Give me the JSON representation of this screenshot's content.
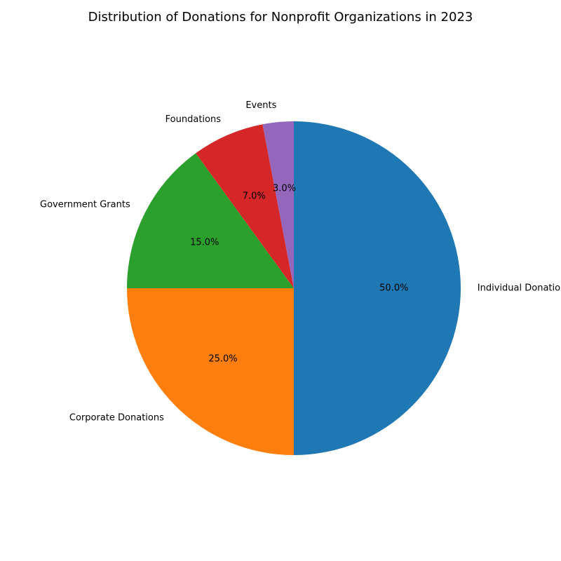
{
  "chart_data": {
    "type": "pie",
    "title": "Distribution of Donations for Nonprofit Organizations in 2023",
    "start_angle_deg": 90,
    "direction": "clockwise",
    "slices": [
      {
        "label": "Individual Donations",
        "value": 50.0,
        "pct_label": "50.0%",
        "color": "#1f77b4"
      },
      {
        "label": "Corporate Donations",
        "value": 25.0,
        "pct_label": "25.0%",
        "color": "#ff7f0e"
      },
      {
        "label": "Government Grants",
        "value": 15.0,
        "pct_label": "15.0%",
        "color": "#2ca02c"
      },
      {
        "label": "Foundations",
        "value": 7.0,
        "pct_label": "7.0%",
        "color": "#d62728"
      },
      {
        "label": "Events",
        "value": 3.0,
        "pct_label": "3.0%",
        "color": "#9467bd"
      }
    ]
  }
}
